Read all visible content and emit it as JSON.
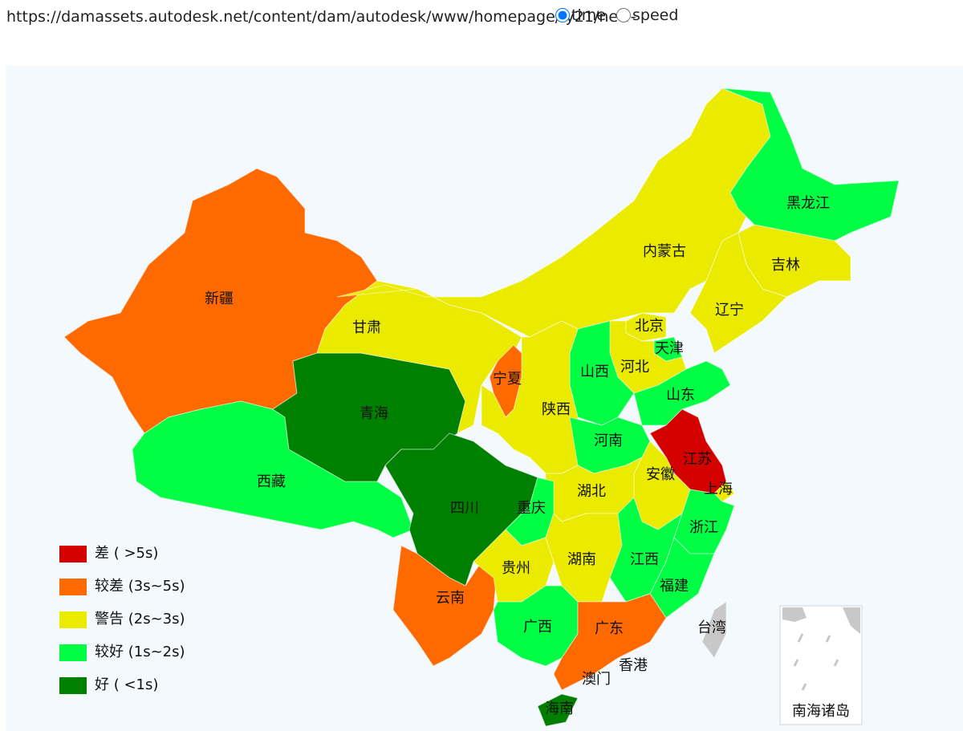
{
  "header": {
    "url": "https://damassets.autodesk.net/content/dam/autodesk/www/homepage/fy21/new-",
    "options": [
      {
        "label": "time",
        "checked": true
      },
      {
        "label": "speed",
        "checked": false
      }
    ]
  },
  "legend": [
    {
      "label": "差 ( >5s)",
      "color": "#d40000"
    },
    {
      "label": "较差 (3s~5s)",
      "color": "#ff6a00"
    },
    {
      "label": "警告 (2s~3s)",
      "color": "#ebeb00"
    },
    {
      "label": "较好 (1s~2s)",
      "color": "#00ff44"
    },
    {
      "label": "好 ( <1s)",
      "color": "#008000"
    }
  ],
  "provinces": [
    {
      "name": "新疆",
      "level": 1
    },
    {
      "name": "西藏",
      "level": 3
    },
    {
      "name": "青海",
      "level": 4
    },
    {
      "name": "甘肃",
      "level": 2
    },
    {
      "name": "四川",
      "level": 4
    },
    {
      "name": "云南",
      "level": 1
    },
    {
      "name": "内蒙古",
      "level": 2
    },
    {
      "name": "黑龙江",
      "level": 3
    },
    {
      "name": "吉林",
      "level": 2
    },
    {
      "name": "辽宁",
      "level": 2
    },
    {
      "name": "北京",
      "level": 2
    },
    {
      "name": "天津",
      "level": 3
    },
    {
      "name": "河北",
      "level": 2
    },
    {
      "name": "山西",
      "level": 3
    },
    {
      "name": "宁夏",
      "level": 1
    },
    {
      "name": "陕西",
      "level": 2
    },
    {
      "name": "山东",
      "level": 3
    },
    {
      "name": "河南",
      "level": 3
    },
    {
      "name": "江苏",
      "level": 0
    },
    {
      "name": "安徽",
      "level": 2
    },
    {
      "name": "上海",
      "level": 2
    },
    {
      "name": "湖北",
      "level": 2
    },
    {
      "name": "重庆",
      "level": 3
    },
    {
      "name": "浙江",
      "level": 3
    },
    {
      "name": "贵州",
      "level": 2
    },
    {
      "name": "湖南",
      "level": 2
    },
    {
      "name": "江西",
      "level": 3
    },
    {
      "name": "福建",
      "level": 3
    },
    {
      "name": "广西",
      "level": 3
    },
    {
      "name": "广东",
      "level": 1
    },
    {
      "name": "台湾",
      "level": null
    },
    {
      "name": "香港",
      "level": null
    },
    {
      "name": "澳门",
      "level": null
    },
    {
      "name": "海南",
      "level": 4
    }
  ],
  "inset": {
    "label": "南海诸岛"
  }
}
